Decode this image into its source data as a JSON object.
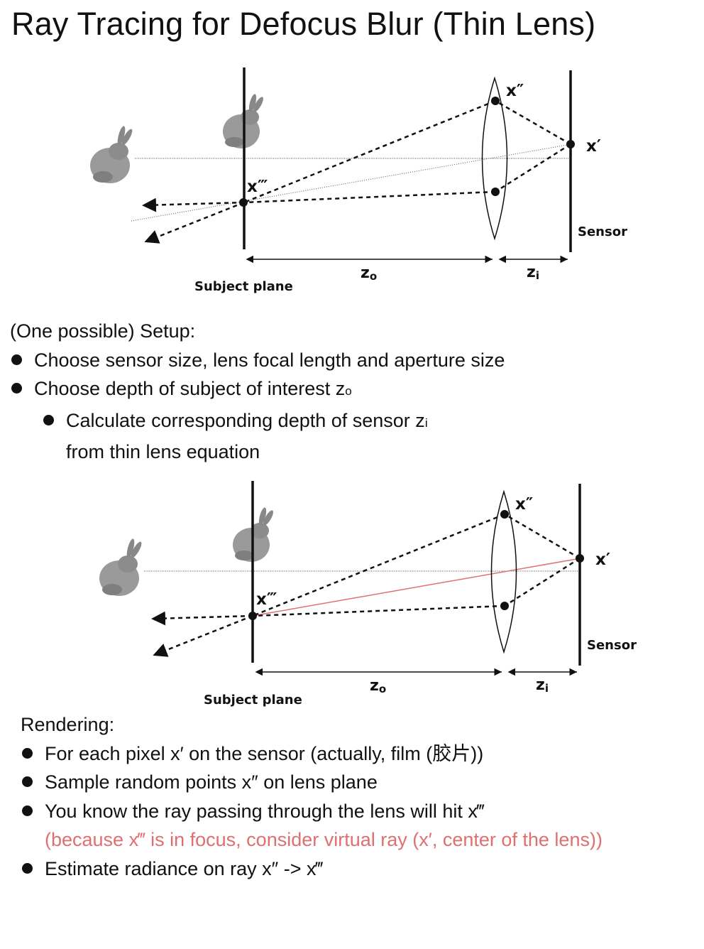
{
  "title": "Ray Tracing for Defocus Blur (Thin Lens)",
  "diagram": {
    "label_x_double_prime": "x″",
    "label_x_prime": "x′",
    "label_x_triple_prime": "x‴",
    "label_sensor": "Sensor",
    "label_subject_plane": "Subject plane",
    "label_zo": "z",
    "label_zo_sub": "o",
    "label_zi": "z",
    "label_zi_sub": "i",
    "virtual_ray_color": "#e07070"
  },
  "setup": {
    "heading": "(One possible) Setup:",
    "bullet1": "Choose sensor size, lens focal length and aperture size",
    "bullet2": "Choose depth of subject of interest z",
    "bullet2_sub": "o",
    "sub_bullet": "Calculate corresponding depth of sensor z",
    "sub_bullet_sub": "i",
    "sub_bullet_cont": "from thin lens equation"
  },
  "rendering": {
    "heading": "Rendering:",
    "bullet1": "For each pixel x′ on the sensor (actually, film (胶片))",
    "bullet2": "Sample random points x″ on lens plane",
    "bullet3": "You know the ray passing through the lens will hit x‴",
    "bullet3_note": "(because x‴ is in focus, consider virtual ray (x′, center of the lens))",
    "bullet4": "Estimate radiance on ray x″ -> x‴"
  },
  "colors": {
    "accent_red": "#e07070",
    "text": "#111111"
  }
}
